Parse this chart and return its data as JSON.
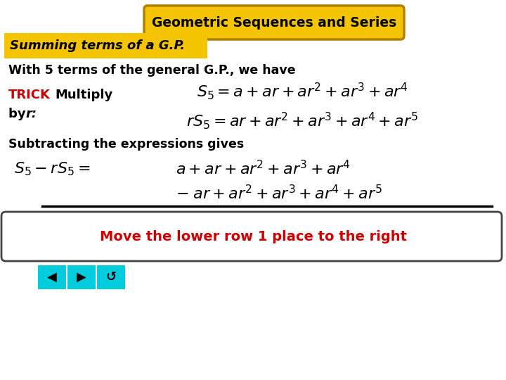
{
  "title": "Geometric Sequences and Series",
  "subtitle": "Summing terms of a G.P.",
  "line1": "With 5 terms of the general G.P., we have",
  "trick_label": "TRICK",
  "trick_word": "Multiply",
  "by_text": "by ",
  "r_text": "r:",
  "eq1": "$S_5 = a + ar + ar^2 + ar^3 + ar^4$",
  "eq2": "$rS_5 = ar + ar^2 + ar^3 + ar^4 + ar^5$",
  "subtracting": "Subtracting the expressions gives",
  "eq3_lhs": "$S_5 - rS_5 =$",
  "eq3_rhs": "$a + ar + ar^2 + ar^3 + ar^4$",
  "eq4_rhs": "$- \\; ar + ar^2 + ar^3 + ar^4 + ar^5$",
  "bottom_msg": "Move the lower row 1 place to the right",
  "bg_color": "#ffffff",
  "title_bg": "#f5c400",
  "title_border": "#b08000",
  "subtitle_bg": "#f5c400",
  "bottom_box_border": "#444444",
  "bottom_msg_color": "#cc0000",
  "trick_color": "#cc0000",
  "text_color": "#000000",
  "nav_color": "#00ccdd"
}
